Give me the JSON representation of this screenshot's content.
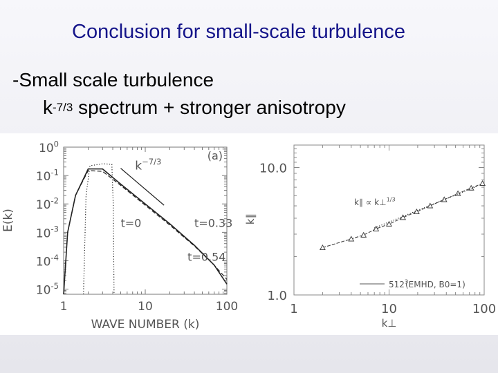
{
  "slide": {
    "title": "Conclusion for small-scale turbulence",
    "bullet": "-Small scale turbulence",
    "sub_base": "k",
    "sub_exp": "-7/3",
    "sub_rest": " spectrum + stronger anisotropy"
  },
  "chart_data": [
    {
      "type": "line",
      "panel_label": "(a)",
      "xlabel": "WAVE NUMBER (k)",
      "ylabel": "E(k)",
      "xscale": "log",
      "yscale": "log",
      "xlim": [
        1,
        100
      ],
      "ylim": [
        6.6e-06,
        1
      ],
      "xticklabels": [
        "1",
        "10",
        "100"
      ],
      "yticklabels": [
        "10^0",
        "10^-1",
        "10^-2",
        "10^-3",
        "10^-4",
        "10^-5"
      ],
      "slope_label": "k^-7/3",
      "series": [
        {
          "name": "t=0",
          "style": "dotted",
          "points": [
            [
              1.75,
              6.6e-06
            ],
            [
              1.88,
              0.02
            ],
            [
              2.1,
              0.22
            ],
            [
              3.0,
              0.26
            ],
            [
              3.9,
              0.25
            ],
            [
              4.05,
              0.01
            ],
            [
              4.15,
              6.6e-06
            ]
          ]
        },
        {
          "name": "t=0.33",
          "style": "dashed",
          "points": [
            [
              1.0,
              6.6e-06
            ],
            [
              1.12,
              0.001
            ],
            [
              1.4,
              0.02
            ],
            [
              2.0,
              0.15
            ],
            [
              3.0,
              0.14
            ],
            [
              5,
              0.045
            ],
            [
              10,
              0.009
            ],
            [
              20,
              0.0018
            ],
            [
              40,
              0.00033
            ],
            [
              70,
              7e-05
            ],
            [
              100,
              2.2e-05
            ]
          ]
        },
        {
          "name": "t=0.54",
          "style": "solid",
          "points": [
            [
              1.0,
              6.6e-06
            ],
            [
              1.12,
              0.001
            ],
            [
              1.4,
              0.02
            ],
            [
              2.0,
              0.17
            ],
            [
              3.0,
              0.17
            ],
            [
              5,
              0.05
            ],
            [
              10,
              0.01
            ],
            [
              20,
              0.002
            ],
            [
              40,
              0.00035
            ],
            [
              70,
              7e-05
            ],
            [
              100,
              1.5e-05
            ]
          ]
        }
      ],
      "reference_line": {
        "points": [
          [
            5.0,
            0.18
          ],
          [
            17.0,
            0.009
          ]
        ]
      },
      "annotations": [
        {
          "text": "t=0",
          "x": 5.0,
          "y": 0.0022
        },
        {
          "text": "t=0.33",
          "x": 40,
          "y": 0.0022
        },
        {
          "text": "t=0.54",
          "x": 33,
          "y": 0.00014
        }
      ]
    },
    {
      "type": "line",
      "xlabel": "k⊥",
      "ylabel": "k∥",
      "xscale": "log",
      "yscale": "log",
      "xlim": [
        1,
        100
      ],
      "ylim": [
        1,
        15
      ],
      "xticklabels": [
        "1",
        "10",
        "100"
      ],
      "yticklabels": [
        "10.0",
        "1.0"
      ],
      "scaling_label": "k∥ ∝ k⊥^1/3",
      "legend": "512^3 (EMHD, B0=1)",
      "series": [
        {
          "name": "512^3 (EMHD, B0=1)",
          "marker": "triangle",
          "points": [
            [
              2,
              2.35
            ],
            [
              4,
              2.75
            ],
            [
              5.4,
              2.95
            ],
            [
              7.3,
              3.3
            ],
            [
              10,
              3.6
            ],
            [
              14,
              4.05
            ],
            [
              19.5,
              4.5
            ],
            [
              27,
              5.0
            ],
            [
              38,
              5.6
            ],
            [
              53,
              6.25
            ],
            [
              73,
              6.9
            ],
            [
              96,
              7.5
            ]
          ]
        },
        {
          "name": "k∥ ∝ k⊥^1/3",
          "style": "dotted",
          "points": [
            [
              7,
              3.35
            ],
            [
              85,
              7.15
            ]
          ]
        }
      ]
    }
  ]
}
